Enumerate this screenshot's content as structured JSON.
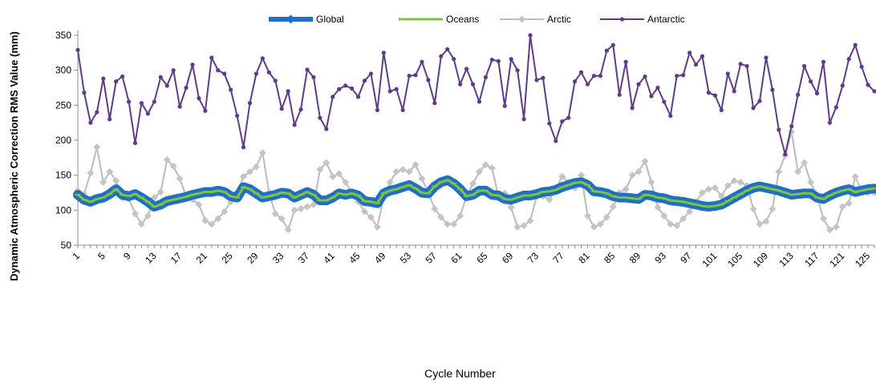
{
  "chart_data": {
    "type": "line",
    "title": "",
    "xlabel": "Cycle Number",
    "ylabel": "Dynamic Atmospheric Correction RMS Value (mm)",
    "ylim": [
      50,
      350
    ],
    "yticks": [
      50,
      100,
      150,
      200,
      250,
      300,
      350
    ],
    "xlim": [
      1,
      126
    ],
    "xticks": [
      1,
      5,
      9,
      13,
      17,
      21,
      25,
      29,
      33,
      37,
      41,
      45,
      49,
      53,
      57,
      61,
      65,
      69,
      73,
      77,
      81,
      85,
      89,
      93,
      97,
      101,
      105,
      109,
      113,
      117,
      121,
      125
    ],
    "grid": false,
    "legend_position": "top",
    "series": [
      {
        "name": "Global",
        "color": "#1f6fc4",
        "values": [
          122,
          115,
          112,
          116,
          118,
          123,
          130,
          122,
          120,
          123,
          118,
          112,
          105,
          108,
          113,
          115,
          117,
          119,
          122,
          124,
          126,
          126,
          128,
          126,
          120,
          118,
          133,
          130,
          124,
          118,
          120,
          122,
          125,
          124,
          118,
          122,
          126,
          122,
          114,
          114,
          118,
          124,
          122,
          124,
          121,
          113,
          112,
          110,
          124,
          128,
          130,
          133,
          136,
          131,
          125,
          124,
          134,
          140,
          143,
          138,
          130,
          120,
          122,
          128,
          128,
          122,
          121,
          116,
          115,
          118,
          121,
          121,
          123,
          126,
          127,
          129,
          133,
          136,
          139,
          140,
          136,
          127,
          126,
          124,
          120,
          118,
          118,
          117,
          116,
          122,
          121,
          118,
          117,
          114,
          113,
          112,
          110,
          108,
          106,
          105,
          106,
          108,
          113,
          118,
          123,
          128,
          132,
          134,
          132,
          130,
          128,
          125,
          122,
          123,
          124,
          124,
          118,
          116,
          121,
          125,
          128,
          130,
          126,
          128,
          130,
          131
        ]
      },
      {
        "name": "Oceans",
        "color": "#7fc241",
        "values": [
          122,
          115,
          112,
          116,
          118,
          123,
          130,
          122,
          120,
          123,
          118,
          112,
          105,
          108,
          113,
          115,
          117,
          119,
          122,
          124,
          126,
          126,
          128,
          126,
          120,
          118,
          133,
          130,
          124,
          118,
          120,
          122,
          125,
          124,
          118,
          122,
          126,
          122,
          114,
          114,
          118,
          124,
          122,
          124,
          121,
          113,
          112,
          110,
          124,
          128,
          130,
          133,
          136,
          131,
          125,
          124,
          134,
          140,
          143,
          138,
          130,
          120,
          122,
          128,
          128,
          122,
          121,
          116,
          115,
          118,
          121,
          121,
          123,
          126,
          127,
          129,
          133,
          136,
          139,
          140,
          136,
          127,
          126,
          124,
          120,
          118,
          118,
          117,
          116,
          122,
          121,
          118,
          117,
          114,
          113,
          112,
          110,
          108,
          106,
          105,
          106,
          108,
          113,
          118,
          123,
          128,
          132,
          134,
          132,
          130,
          128,
          125,
          122,
          123,
          124,
          124,
          118,
          116,
          121,
          125,
          128,
          130,
          126,
          128,
          130,
          131
        ]
      },
      {
        "name": "Arctic",
        "color": "#bbbbbb",
        "values": [
          128,
          123,
          153,
          190,
          140,
          155,
          142,
          118,
          116,
          95,
          80,
          92,
          118,
          126,
          172,
          163,
          145,
          120,
          115,
          108,
          85,
          80,
          88,
          98,
          112,
          125,
          148,
          155,
          162,
          182,
          125,
          95,
          88,
          72,
          100,
          102,
          105,
          108,
          158,
          168,
          148,
          152,
          140,
          125,
          112,
          98,
          90,
          76,
          118,
          140,
          155,
          158,
          155,
          165,
          145,
          125,
          102,
          90,
          80,
          80,
          92,
          120,
          138,
          155,
          165,
          160,
          120,
          124,
          104,
          76,
          78,
          85,
          120,
          120,
          115,
          130,
          148,
          140,
          132,
          150,
          92,
          76,
          80,
          90,
          105,
          125,
          130,
          150,
          155,
          170,
          140,
          104,
          92,
          80,
          78,
          88,
          98,
          112,
          125,
          130,
          132,
          120,
          135,
          142,
          140,
          135,
          102,
          80,
          84,
          102,
          155,
          178,
          212,
          155,
          168,
          140,
          120,
          88,
          72,
          76,
          105,
          110,
          148,
          128,
          125,
          125
        ]
      },
      {
        "name": "Antarctic",
        "color": "#5e3c87",
        "values": [
          329,
          268,
          225,
          240,
          288,
          230,
          284,
          291,
          255,
          196,
          253,
          238,
          255,
          290,
          278,
          300,
          248,
          275,
          308,
          260,
          242,
          318,
          300,
          295,
          272,
          235,
          190,
          253,
          295,
          317,
          297,
          285,
          245,
          270,
          222,
          244,
          301,
          290,
          232,
          216,
          262,
          273,
          278,
          274,
          262,
          285,
          295,
          243,
          325,
          270,
          273,
          243,
          292,
          293,
          312,
          286,
          253,
          320,
          330,
          316,
          280,
          302,
          280,
          255,
          290,
          315,
          313,
          249,
          316,
          300,
          230,
          350,
          286,
          289,
          224,
          199,
          227,
          232,
          284,
          297,
          280,
          292,
          292,
          328,
          336,
          265,
          312,
          246,
          280,
          291,
          263,
          275,
          255,
          235,
          292,
          293,
          325,
          308,
          320,
          268,
          264,
          243,
          295,
          270,
          309,
          306,
          246,
          256,
          318,
          272,
          215,
          180,
          220,
          265,
          306,
          284,
          267,
          312,
          225,
          247,
          278,
          316,
          336,
          305,
          279,
          270
        ]
      }
    ]
  }
}
